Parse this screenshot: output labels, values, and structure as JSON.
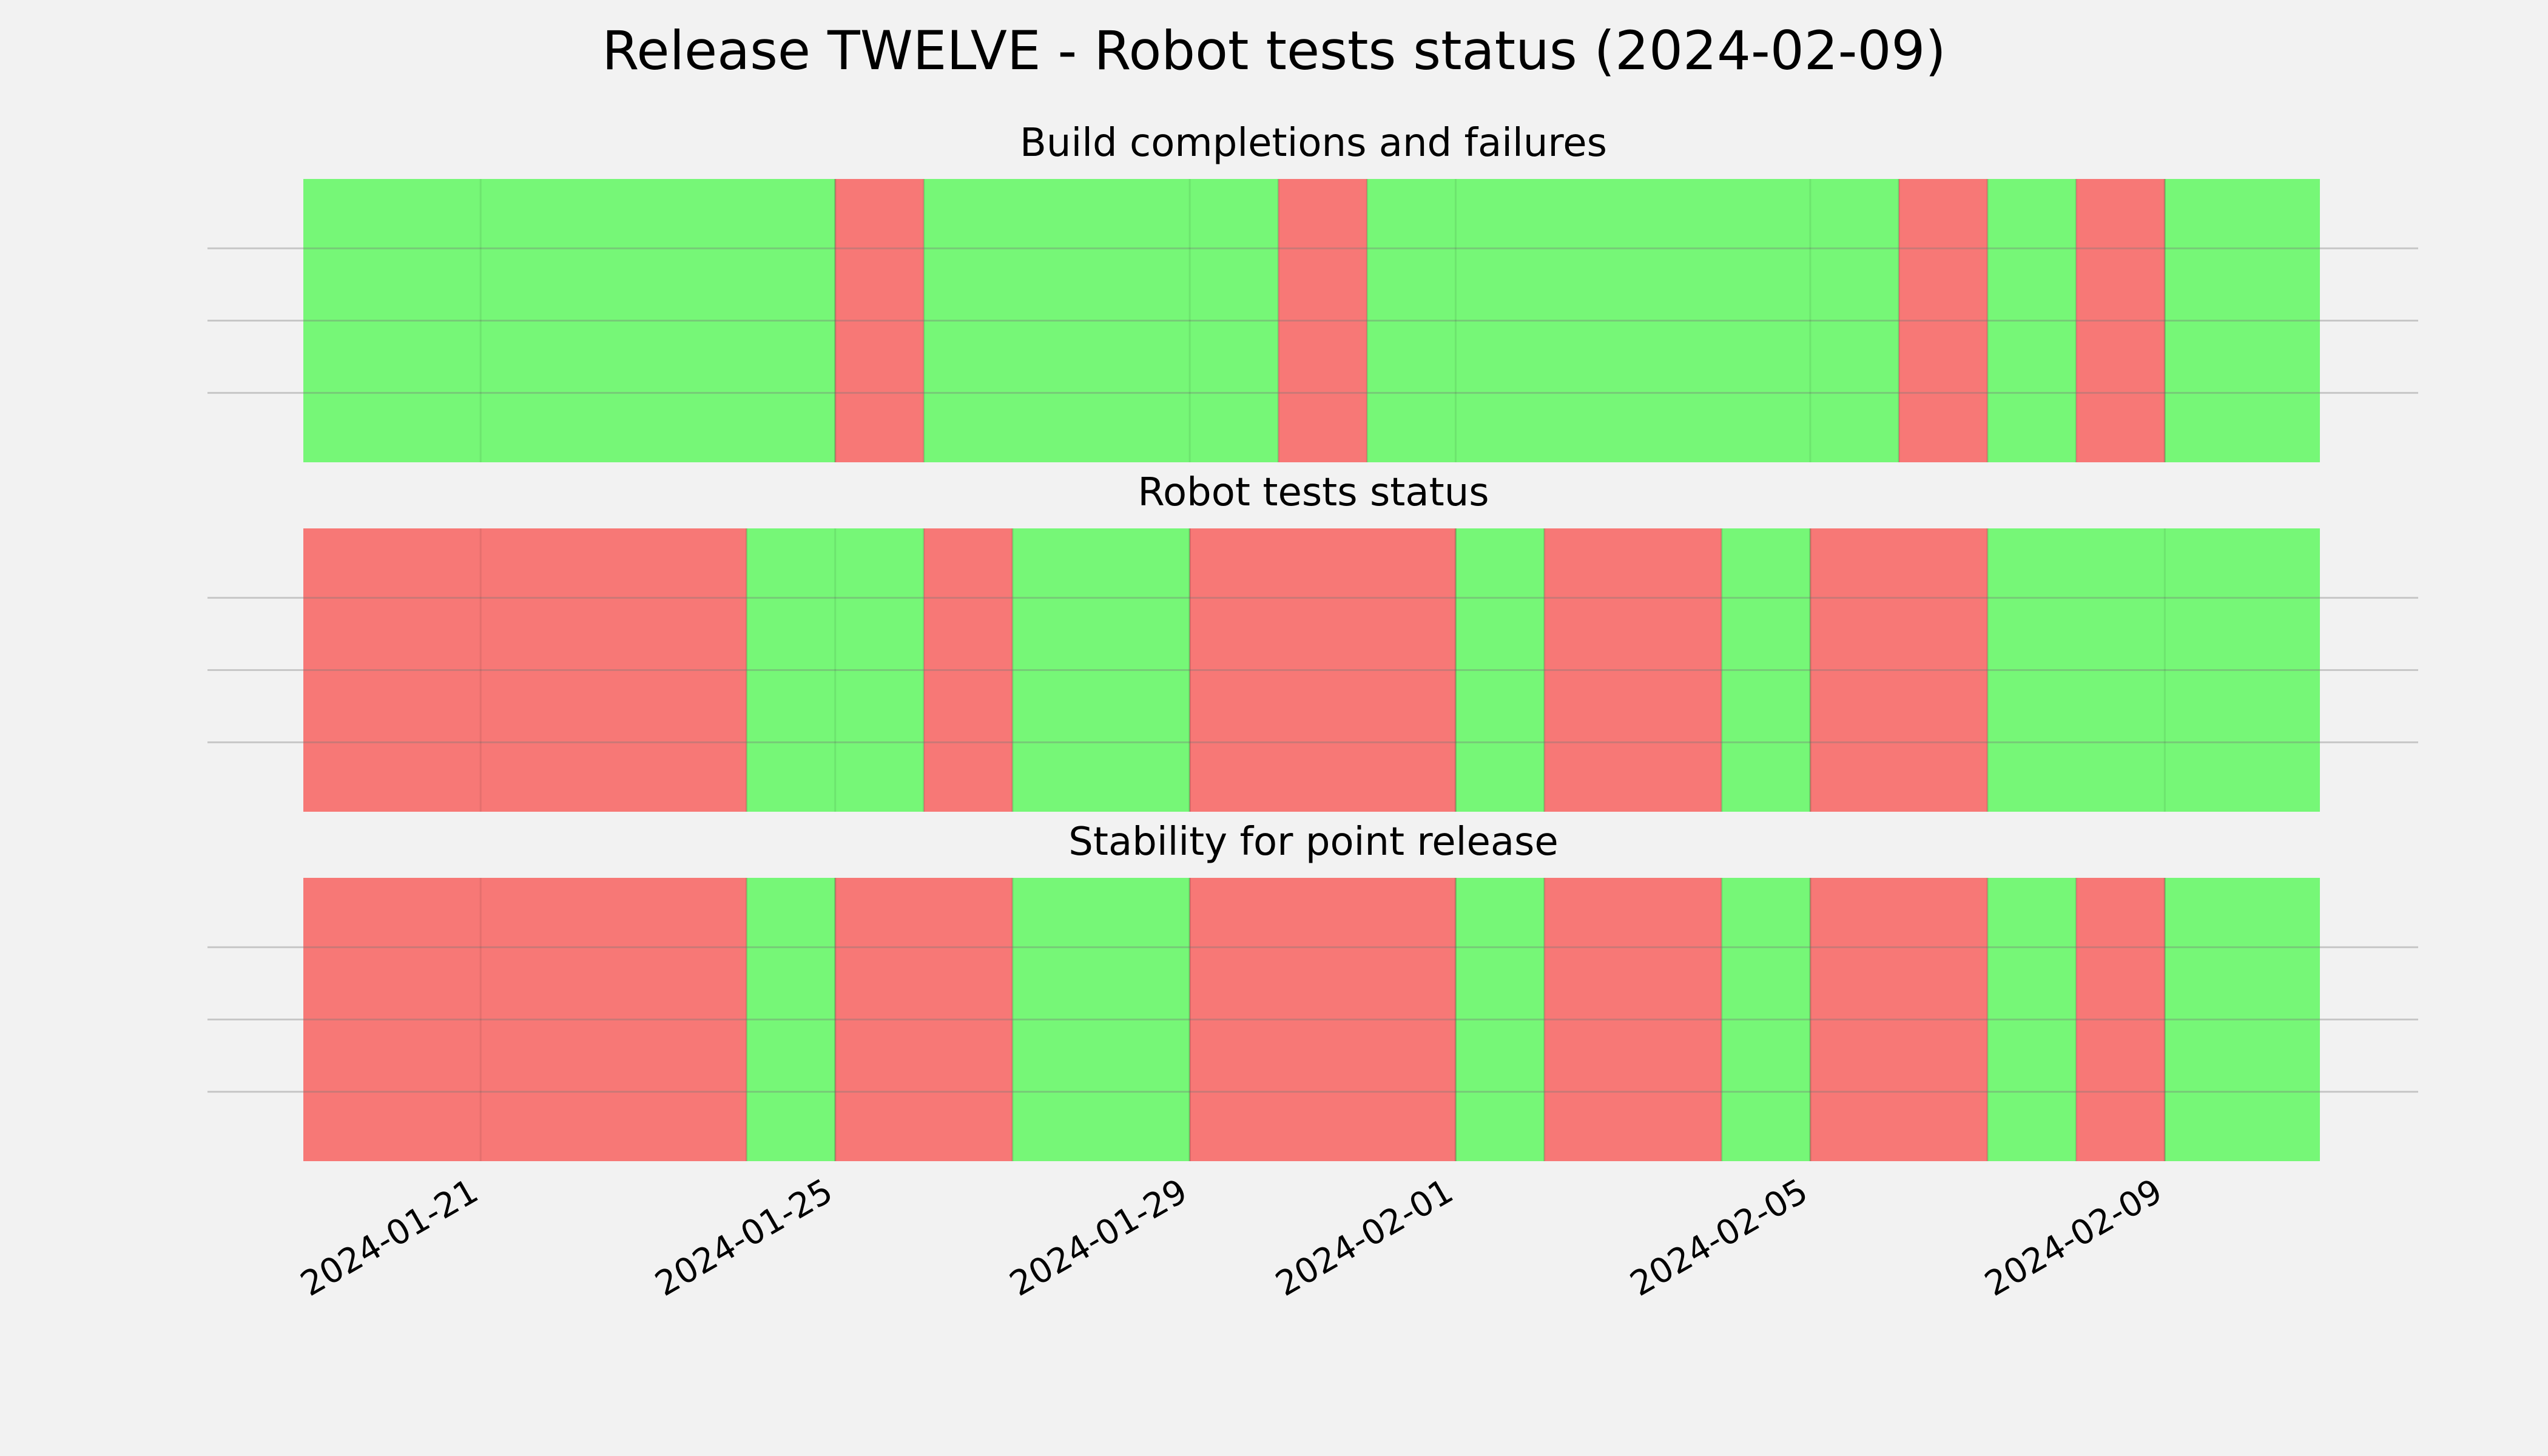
{
  "chart_data": {
    "type": "timeline",
    "title": "Release TWELVE - Robot tests status (2024-02-09)",
    "colors": {
      "success": "#76f777",
      "failure": "#f77876",
      "background": "#f2f2f2",
      "gridline": "#c8c8c8"
    },
    "x_range": [
      "2024-01-19",
      "2024-02-10 18:00"
    ],
    "x_ticks": [
      "2024-01-21",
      "2024-01-25",
      "2024-01-29",
      "2024-02-01",
      "2024-02-05",
      "2024-02-09"
    ],
    "legend": "none",
    "panels": [
      {
        "title": "Build completions and failures",
        "segments": [
          {
            "start": "2024-01-19",
            "end": "2024-01-25",
            "status": "success"
          },
          {
            "start": "2024-01-25",
            "end": "2024-01-26",
            "status": "failure"
          },
          {
            "start": "2024-01-26",
            "end": "2024-01-30",
            "status": "success"
          },
          {
            "start": "2024-01-30",
            "end": "2024-01-31",
            "status": "failure"
          },
          {
            "start": "2024-01-31",
            "end": "2024-02-06",
            "status": "success"
          },
          {
            "start": "2024-02-06",
            "end": "2024-02-07",
            "status": "failure"
          },
          {
            "start": "2024-02-07",
            "end": "2024-02-08",
            "status": "success"
          },
          {
            "start": "2024-02-08",
            "end": "2024-02-09",
            "status": "failure"
          },
          {
            "start": "2024-02-09",
            "end": "2024-02-10 18:00",
            "status": "success"
          }
        ]
      },
      {
        "title": "Robot tests status",
        "segments": [
          {
            "start": "2024-01-19",
            "end": "2024-01-24",
            "status": "failure"
          },
          {
            "start": "2024-01-24",
            "end": "2024-01-26",
            "status": "success"
          },
          {
            "start": "2024-01-26",
            "end": "2024-01-27",
            "status": "failure"
          },
          {
            "start": "2024-01-27",
            "end": "2024-01-29",
            "status": "success"
          },
          {
            "start": "2024-01-29",
            "end": "2024-02-01",
            "status": "failure"
          },
          {
            "start": "2024-02-01",
            "end": "2024-02-02",
            "status": "success"
          },
          {
            "start": "2024-02-02",
            "end": "2024-02-04",
            "status": "failure"
          },
          {
            "start": "2024-02-04",
            "end": "2024-02-05",
            "status": "success"
          },
          {
            "start": "2024-02-05",
            "end": "2024-02-07",
            "status": "failure"
          },
          {
            "start": "2024-02-07",
            "end": "2024-02-10 18:00",
            "status": "success"
          }
        ]
      },
      {
        "title": "Stability for point release",
        "segments": [
          {
            "start": "2024-01-19",
            "end": "2024-01-24",
            "status": "failure"
          },
          {
            "start": "2024-01-24",
            "end": "2024-01-25",
            "status": "success"
          },
          {
            "start": "2024-01-25",
            "end": "2024-01-27",
            "status": "failure"
          },
          {
            "start": "2024-01-27",
            "end": "2024-01-29",
            "status": "success"
          },
          {
            "start": "2024-01-29",
            "end": "2024-02-01",
            "status": "failure"
          },
          {
            "start": "2024-02-01",
            "end": "2024-02-02",
            "status": "success"
          },
          {
            "start": "2024-02-02",
            "end": "2024-02-04",
            "status": "failure"
          },
          {
            "start": "2024-02-04",
            "end": "2024-02-05",
            "status": "success"
          },
          {
            "start": "2024-02-05",
            "end": "2024-02-07",
            "status": "failure"
          },
          {
            "start": "2024-02-07",
            "end": "2024-02-08",
            "status": "success"
          },
          {
            "start": "2024-02-08",
            "end": "2024-02-09",
            "status": "failure"
          },
          {
            "start": "2024-02-09",
            "end": "2024-02-10 18:00",
            "status": "success"
          }
        ]
      }
    ]
  }
}
